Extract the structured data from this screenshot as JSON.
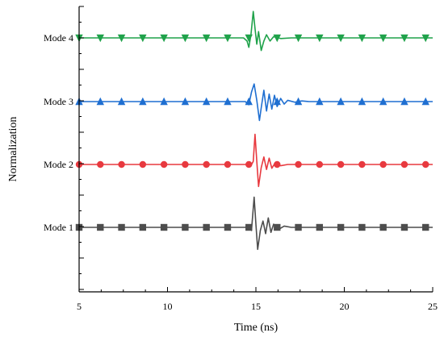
{
  "chart_data": {
    "type": "line",
    "xlabel": "Time (ns)",
    "ylabel": "Normalization",
    "xlim": [
      5,
      25
    ],
    "x_ticks": [
      "5",
      "10",
      "15",
      "20",
      "25"
    ],
    "grid": false,
    "legend": "none",
    "series": [
      {
        "name": "Mode 1",
        "color": "#4d4d4d",
        "marker": "square",
        "baseline": 1,
        "marker_x": [
          5.0,
          6.2,
          7.4,
          8.6,
          9.8,
          11.0,
          12.2,
          13.4,
          14.6,
          16.2,
          17.4,
          18.6,
          19.8,
          21.0,
          22.2,
          23.4,
          24.6
        ],
        "points": [
          [
            5,
            0
          ],
          [
            14.4,
            0
          ],
          [
            14.65,
            0.03
          ],
          [
            14.75,
            -0.05
          ],
          [
            14.9,
            0.48
          ],
          [
            15.0,
            0.05
          ],
          [
            15.1,
            -0.35
          ],
          [
            15.25,
            -0.05
          ],
          [
            15.4,
            0.1
          ],
          [
            15.55,
            -0.1
          ],
          [
            15.7,
            0.15
          ],
          [
            15.85,
            -0.08
          ],
          [
            16.0,
            0.05
          ],
          [
            16.3,
            -0.03
          ],
          [
            16.6,
            0.02
          ],
          [
            17.0,
            0
          ],
          [
            25,
            0
          ]
        ]
      },
      {
        "name": "Mode 2",
        "color": "#e8393f",
        "marker": "circle",
        "baseline": 2,
        "marker_x": [
          5.0,
          6.2,
          7.4,
          8.6,
          9.8,
          11.0,
          12.2,
          13.4,
          14.6,
          16.2,
          17.4,
          18.6,
          19.8,
          21.0,
          22.2,
          23.4,
          24.6
        ],
        "points": [
          [
            5,
            0
          ],
          [
            14.5,
            0
          ],
          [
            14.7,
            -0.03
          ],
          [
            14.85,
            0.05
          ],
          [
            14.95,
            0.48
          ],
          [
            15.05,
            0.05
          ],
          [
            15.15,
            -0.35
          ],
          [
            15.3,
            -0.05
          ],
          [
            15.45,
            0.12
          ],
          [
            15.6,
            -0.08
          ],
          [
            15.75,
            0.1
          ],
          [
            15.9,
            -0.06
          ],
          [
            16.1,
            0.03
          ],
          [
            16.4,
            -0.02
          ],
          [
            16.8,
            0
          ],
          [
            25,
            0
          ]
        ]
      },
      {
        "name": "Mode 3",
        "color": "#1f6fd1",
        "marker": "triangle-up",
        "baseline": 3,
        "marker_x": [
          5.0,
          6.2,
          7.4,
          8.6,
          9.8,
          11.0,
          12.2,
          13.4,
          14.6,
          16.2,
          17.4,
          18.6,
          19.8,
          21.0,
          22.2,
          23.4,
          24.6
        ],
        "points": [
          [
            5,
            0
          ],
          [
            14.4,
            0
          ],
          [
            14.6,
            -0.05
          ],
          [
            14.75,
            0.15
          ],
          [
            14.9,
            0.28
          ],
          [
            15.05,
            0.02
          ],
          [
            15.2,
            -0.3
          ],
          [
            15.3,
            -0.1
          ],
          [
            15.45,
            0.18
          ],
          [
            15.6,
            -0.15
          ],
          [
            15.75,
            0.12
          ],
          [
            15.9,
            -0.12
          ],
          [
            16.05,
            0.1
          ],
          [
            16.2,
            -0.08
          ],
          [
            16.4,
            0.05
          ],
          [
            16.6,
            -0.04
          ],
          [
            16.8,
            0.02
          ],
          [
            17.2,
            -0.01
          ],
          [
            17.6,
            0.01
          ],
          [
            18.0,
            0
          ],
          [
            25,
            0
          ]
        ]
      },
      {
        "name": "Mode 4",
        "color": "#1fa24a",
        "marker": "triangle-down",
        "baseline": 4,
        "marker_x": [
          5.0,
          6.2,
          7.4,
          8.6,
          9.8,
          11.0,
          12.2,
          13.4,
          14.6,
          16.2,
          17.4,
          18.6,
          19.8,
          21.0,
          22.2,
          23.4,
          24.6
        ],
        "points": [
          [
            5,
            0
          ],
          [
            14.3,
            0
          ],
          [
            14.5,
            -0.05
          ],
          [
            14.6,
            -0.15
          ],
          [
            14.72,
            0.05
          ],
          [
            14.85,
            0.42
          ],
          [
            14.95,
            0.15
          ],
          [
            15.05,
            -0.1
          ],
          [
            15.15,
            0.1
          ],
          [
            15.3,
            -0.2
          ],
          [
            15.45,
            -0.05
          ],
          [
            15.6,
            0.05
          ],
          [
            15.8,
            -0.05
          ],
          [
            16.0,
            0.02
          ],
          [
            16.4,
            -0.01
          ],
          [
            17.0,
            0
          ],
          [
            25,
            0
          ]
        ]
      }
    ]
  }
}
